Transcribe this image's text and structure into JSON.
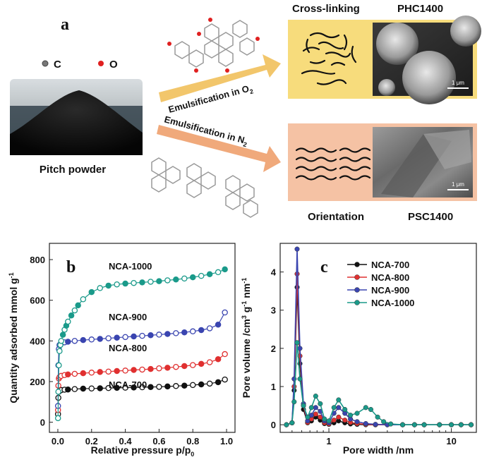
{
  "panel_a": {
    "letter": "a",
    "legend_c": "C",
    "legend_o": "O",
    "pitch_label": "Pitch powder",
    "arrow_top": "Emulsification in O",
    "arrow_top_sub": "2",
    "arrow_bottom": "Emulsification in N",
    "arrow_bottom_sub": "2",
    "top_left": "Cross-linking",
    "top_right": "PHC1400",
    "bottom_left": "Orientation",
    "bottom_right": "PSC1400",
    "scalebar_top": "1 μm",
    "scalebar_bottom": "1 μm",
    "colors": {
      "top_box": "#f7dc7c",
      "bottom_box": "#f5c2a4",
      "arrow_top": "#f2c66b",
      "arrow_bottom": "#f0a97b"
    }
  },
  "chart_data": [
    {
      "type": "scatter",
      "panel": "b",
      "ylabel": "Quantity adsorbed mmol g",
      "ylabel_sup": "-1",
      "xlabel": "Relative pressure p/p",
      "xlabel_sub": "0",
      "xlim": [
        -0.05,
        1.05
      ],
      "ylim": [
        -50,
        880
      ],
      "xticks": [
        0.0,
        0.2,
        0.4,
        0.6,
        0.8,
        1.0
      ],
      "yticks": [
        0,
        200,
        400,
        600,
        800
      ],
      "series": [
        {
          "name": "NCA-700",
          "color": "#111111",
          "x": [
            0.001,
            0.003,
            0.006,
            0.01,
            0.02,
            0.04,
            0.06,
            0.1,
            0.15,
            0.2,
            0.25,
            0.3,
            0.35,
            0.4,
            0.45,
            0.5,
            0.55,
            0.6,
            0.65,
            0.7,
            0.75,
            0.8,
            0.85,
            0.9,
            0.95,
            0.99
          ],
          "y": [
            40,
            120,
            150,
            155,
            158,
            160,
            161,
            163,
            165,
            166,
            167,
            168,
            169,
            170,
            171,
            172,
            173,
            174,
            176,
            178,
            180,
            183,
            186,
            190,
            197,
            210
          ]
        },
        {
          "name": "NCA-800",
          "color": "#e03030",
          "x": [
            0.001,
            0.003,
            0.006,
            0.01,
            0.02,
            0.04,
            0.06,
            0.1,
            0.15,
            0.2,
            0.25,
            0.3,
            0.35,
            0.4,
            0.45,
            0.5,
            0.55,
            0.6,
            0.65,
            0.7,
            0.75,
            0.8,
            0.85,
            0.9,
            0.95,
            0.99
          ],
          "y": [
            60,
            180,
            215,
            222,
            228,
            232,
            235,
            238,
            241,
            244,
            247,
            249,
            252,
            254,
            257,
            259,
            262,
            265,
            268,
            272,
            276,
            281,
            287,
            295,
            310,
            335
          ]
        },
        {
          "name": "NCA-900",
          "color": "#3a45b0",
          "x": [
            0.001,
            0.003,
            0.006,
            0.01,
            0.02,
            0.04,
            0.06,
            0.1,
            0.15,
            0.2,
            0.25,
            0.3,
            0.35,
            0.4,
            0.45,
            0.5,
            0.55,
            0.6,
            0.65,
            0.7,
            0.75,
            0.8,
            0.85,
            0.9,
            0.95,
            0.99
          ],
          "y": [
            80,
            280,
            360,
            380,
            388,
            393,
            396,
            400,
            404,
            407,
            410,
            413,
            416,
            419,
            422,
            425,
            428,
            431,
            434,
            438,
            442,
            447,
            453,
            462,
            480,
            540
          ]
        },
        {
          "name": "NCA-1000",
          "color": "#1a9a8a",
          "x": [
            0.001,
            0.003,
            0.006,
            0.01,
            0.015,
            0.02,
            0.03,
            0.04,
            0.05,
            0.06,
            0.08,
            0.1,
            0.12,
            0.15,
            0.2,
            0.25,
            0.3,
            0.35,
            0.4,
            0.45,
            0.5,
            0.55,
            0.6,
            0.65,
            0.7,
            0.75,
            0.8,
            0.85,
            0.9,
            0.95,
            0.99
          ],
          "y": [
            20,
            150,
            280,
            350,
            380,
            400,
            430,
            455,
            475,
            495,
            525,
            550,
            575,
            605,
            640,
            660,
            672,
            678,
            682,
            685,
            688,
            691,
            694,
            698,
            702,
            707,
            713,
            720,
            728,
            738,
            752
          ]
        }
      ],
      "annotations": [
        "NCA-1000",
        "NCA-900",
        "NCA-800",
        "NCA-700"
      ]
    },
    {
      "type": "line",
      "panel": "c",
      "ylabel": "Pore volume /cm",
      "ylabel_sup1": "3",
      "ylabel_mid": " g",
      "ylabel_sup2": "-1",
      "ylabel_end": " nm",
      "ylabel_sup3": "-1",
      "xlabel": "Pore width /nm",
      "xscale": "log",
      "xlim": [
        0.4,
        16
      ],
      "ylim": [
        -0.2,
        4.75
      ],
      "xticks": [
        1,
        10
      ],
      "yticks": [
        0,
        1,
        2,
        3,
        4
      ],
      "legend_position": "top-right",
      "series": [
        {
          "name": "NCA-700",
          "color": "#111111",
          "x": [
            0.45,
            0.5,
            0.52,
            0.55,
            0.58,
            0.62,
            0.67,
            0.72,
            0.78,
            0.85,
            0.92,
            1.0,
            1.1,
            1.2,
            1.35,
            1.5,
            1.7,
            2.0,
            2.4,
            3.0,
            4,
            5,
            6,
            8,
            10,
            12,
            14.5
          ],
          "y": [
            0,
            0.05,
            0.9,
            3.6,
            1.6,
            0.4,
            0.05,
            0.1,
            0.2,
            0.12,
            0.03,
            0.01,
            0.05,
            0.1,
            0.05,
            0.02,
            0.01,
            0,
            0,
            0,
            0,
            0,
            0,
            0,
            0,
            0,
            0
          ]
        },
        {
          "name": "NCA-800",
          "color": "#e03030",
          "x": [
            0.45,
            0.5,
            0.52,
            0.55,
            0.58,
            0.62,
            0.67,
            0.72,
            0.78,
            0.85,
            0.92,
            1.0,
            1.1,
            1.2,
            1.35,
            1.5,
            1.7,
            2.0,
            2.4,
            3.0,
            4,
            5,
            6,
            8,
            10,
            12,
            14.5
          ],
          "y": [
            0,
            0.05,
            1.0,
            3.95,
            1.8,
            0.5,
            0.06,
            0.15,
            0.28,
            0.2,
            0.05,
            0.02,
            0.12,
            0.2,
            0.12,
            0.06,
            0.03,
            0.01,
            0,
            0,
            0,
            0,
            0,
            0,
            0,
            0,
            0
          ]
        },
        {
          "name": "NCA-900",
          "color": "#3a45b0",
          "x": [
            0.45,
            0.5,
            0.52,
            0.55,
            0.58,
            0.62,
            0.67,
            0.72,
            0.78,
            0.85,
            0.92,
            1.0,
            1.1,
            1.2,
            1.35,
            1.5,
            1.7,
            2.0,
            2.4,
            3.0,
            4,
            5,
            6,
            8,
            10,
            12,
            14.5
          ],
          "y": [
            0,
            0.05,
            1.2,
            4.6,
            2.0,
            0.55,
            0.1,
            0.25,
            0.45,
            0.35,
            0.1,
            0.05,
            0.3,
            0.45,
            0.3,
            0.15,
            0.08,
            0.03,
            0.01,
            0,
            0,
            0,
            0,
            0,
            0,
            0,
            0
          ]
        },
        {
          "name": "NCA-1000",
          "color": "#1a9a8a",
          "x": [
            0.45,
            0.5,
            0.52,
            0.55,
            0.58,
            0.62,
            0.67,
            0.72,
            0.78,
            0.85,
            0.92,
            1.0,
            1.1,
            1.2,
            1.35,
            1.5,
            1.7,
            2.0,
            2.2,
            2.5,
            2.8,
            3.2,
            4,
            5,
            6,
            8,
            10,
            12,
            14.5
          ],
          "y": [
            0,
            0.05,
            0.6,
            2.15,
            1.2,
            0.5,
            0.2,
            0.45,
            0.75,
            0.55,
            0.15,
            0.1,
            0.45,
            0.65,
            0.4,
            0.25,
            0.3,
            0.45,
            0.4,
            0.2,
            0.08,
            0.02,
            0,
            0,
            0,
            0,
            0,
            0,
            0
          ]
        }
      ]
    }
  ]
}
